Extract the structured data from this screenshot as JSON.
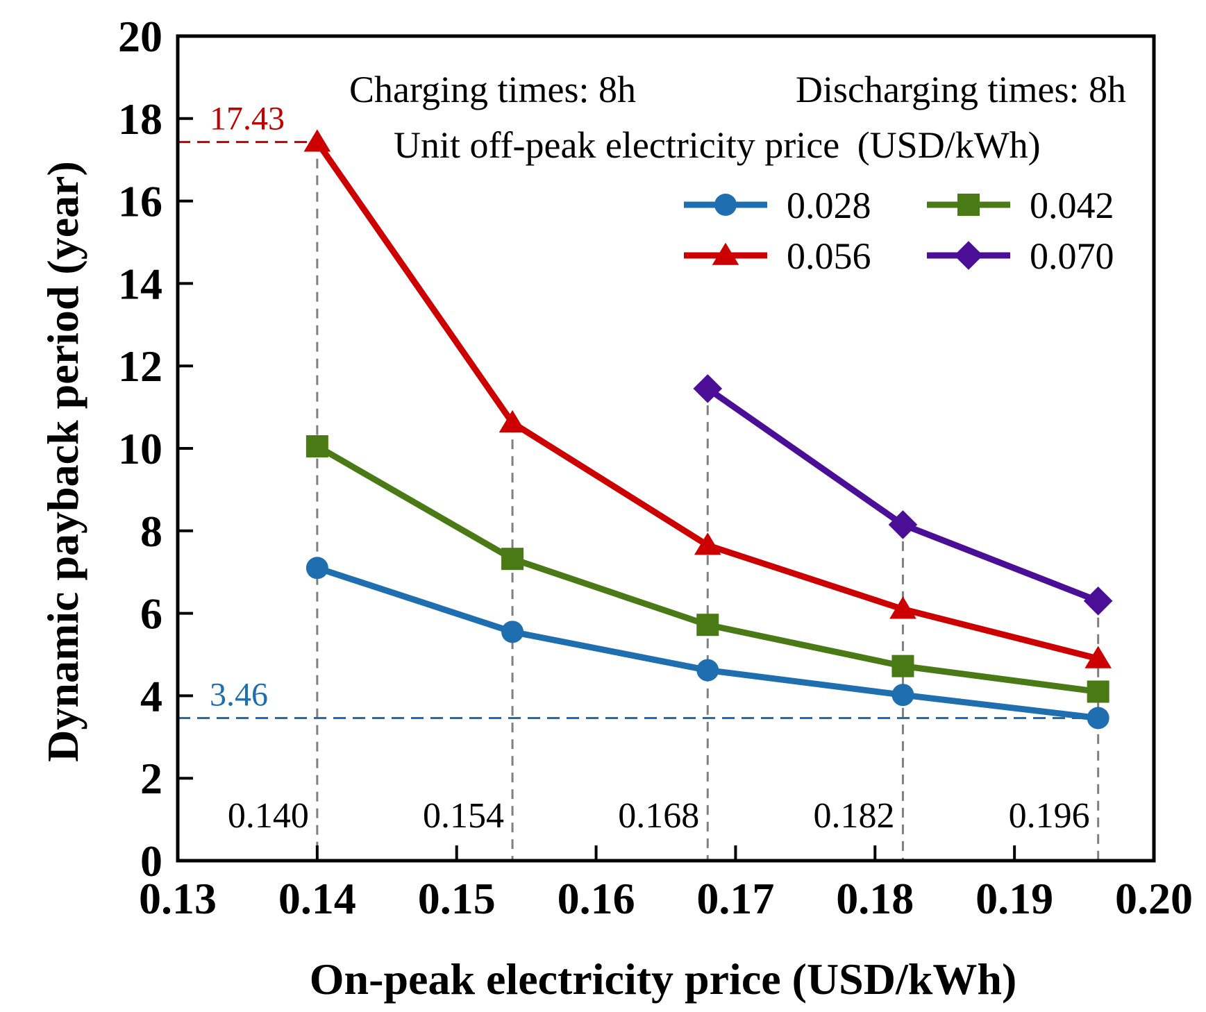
{
  "chart_data": {
    "type": "line",
    "title": "",
    "xlabel": "On-peak electricity price (USD/kWh)",
    "ylabel": "Dynamic payback period (year)",
    "xlim": [
      0.13,
      0.2
    ],
    "ylim": [
      0,
      20
    ],
    "x_ticks": [
      0.13,
      0.14,
      0.15,
      0.16,
      0.17,
      0.18,
      0.19,
      0.2
    ],
    "x_tick_labels": [
      "0.13",
      "0.14",
      "0.15",
      "0.16",
      "0.17",
      "0.18",
      "0.19",
      "0.20"
    ],
    "y_ticks": [
      0,
      2,
      4,
      6,
      8,
      10,
      12,
      14,
      16,
      18,
      20
    ],
    "y_tick_labels": [
      "0",
      "2",
      "4",
      "6",
      "8",
      "10",
      "12",
      "14",
      "16",
      "18",
      "20"
    ],
    "grid": false,
    "annotations": {
      "line1": "Charging times: 8h",
      "line1b": "Discharging times: 8h",
      "line2": "Unit off-peak electricity price",
      "line2_unit": "(USD/kWh)"
    },
    "legend_title": "Unit off-peak electricity price (USD/kWh)",
    "legend_position": "top-right",
    "price_labels": [
      "0.140",
      "0.154",
      "0.168",
      "0.182",
      "0.196"
    ],
    "price_positions": [
      0.14,
      0.154,
      0.168,
      0.182,
      0.196
    ],
    "ref_lines": [
      {
        "value": 17.43,
        "label": "17.43",
        "color": "#c00000"
      },
      {
        "value": 3.46,
        "label": "3.46",
        "color": "#1f6fb0"
      }
    ],
    "series": [
      {
        "name": "0.028",
        "color": "#1f6fb0",
        "marker": "circle",
        "x": [
          0.14,
          0.154,
          0.168,
          0.182,
          0.196
        ],
        "y": [
          7.1,
          5.55,
          4.62,
          4.02,
          3.46
        ]
      },
      {
        "name": "0.042",
        "color": "#4a7a16",
        "marker": "square",
        "x": [
          0.14,
          0.154,
          0.168,
          0.182,
          0.196
        ],
        "y": [
          10.05,
          7.32,
          5.72,
          4.72,
          4.1
        ]
      },
      {
        "name": "0.056",
        "color": "#cc0000",
        "marker": "triangle",
        "x": [
          0.14,
          0.154,
          0.168,
          0.182,
          0.196
        ],
        "y": [
          17.43,
          10.62,
          7.65,
          6.1,
          4.9
        ]
      },
      {
        "name": "0.070",
        "color": "#4b0e96",
        "marker": "diamond",
        "x": [
          0.168,
          0.182,
          0.196
        ],
        "y": [
          11.45,
          8.15,
          6.3
        ]
      }
    ]
  }
}
